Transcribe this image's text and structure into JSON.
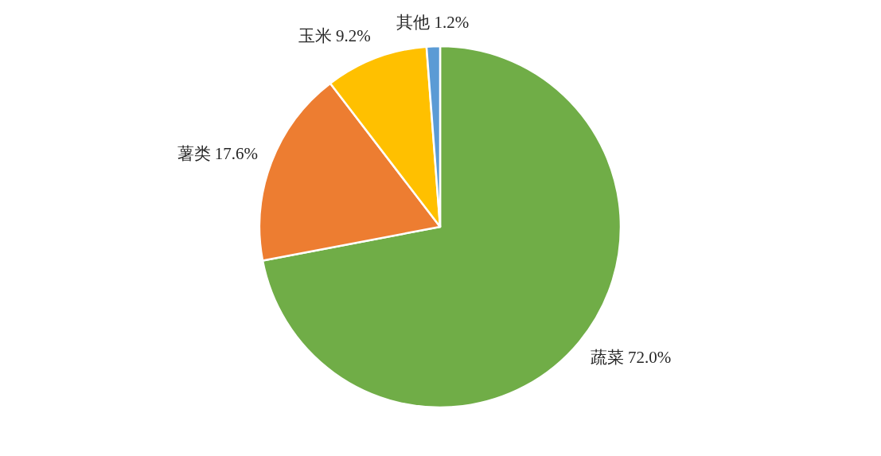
{
  "chart_data": {
    "type": "pie",
    "categories": [
      "蔬菜",
      "薯类",
      "玉米",
      "其他"
    ],
    "values": [
      72.0,
      17.6,
      9.2,
      1.2
    ],
    "colors": [
      "#70ad47",
      "#ed7d31",
      "#ffc000",
      "#5b9bd5"
    ],
    "value_labels": [
      "72.0%",
      "17.6%",
      "9.2%",
      "1.2%"
    ],
    "legend": false
  }
}
